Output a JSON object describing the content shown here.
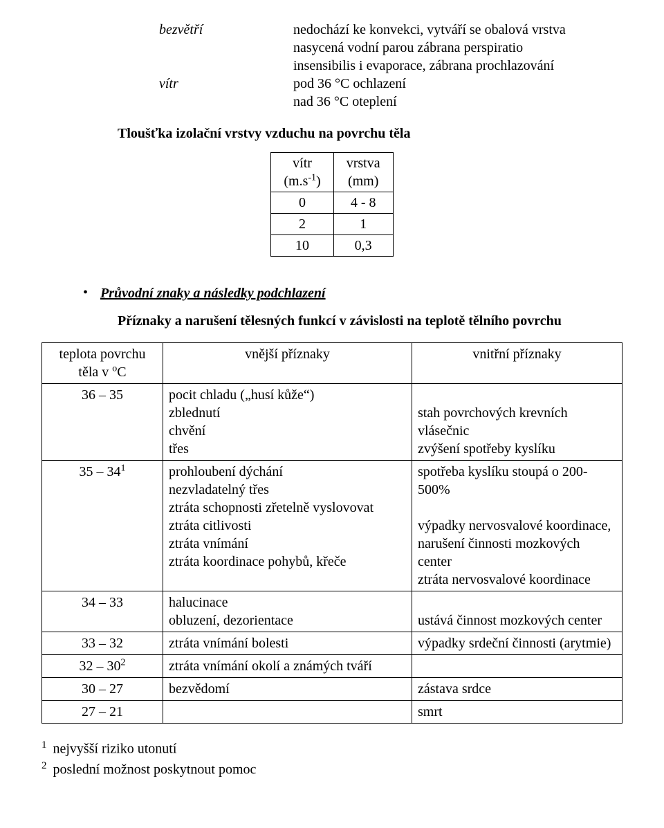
{
  "defs": {
    "row1_term": "bezvětří",
    "row1_line1": "nedochází ke konvekci, vytváří se obalová vrstva",
    "row1_line2": "nasycená vodní  parou  zábrana perspiratio",
    "row1_line3": "insensibilis i evaporace, zábrana prochlazování",
    "row2_term": "vítr",
    "row2_line1": "pod 36 °C ochlazení",
    "row2_line2": "nad 36 °C oteplení"
  },
  "thickness_heading": "Tloušťka izolační vrstvy vzduchu na povrchu těla",
  "small_table": {
    "header_left": "vítr",
    "header_left_unit": "(m.s",
    "header_left_unit_exp": "-1",
    "header_left_unit_close": ")",
    "header_right": "vrstva",
    "header_right_unit": "(mm)",
    "r1c1": "0",
    "r1c2": "4 - 8",
    "r2c1": "2",
    "r2c2": "1",
    "r3c1": "10",
    "r3c2": "0,3"
  },
  "bullet": "Průvodní znaky a následky podchlazení",
  "subcaption": "Příznaky a narušení tělesných funkcí v závislosti na  teplotě tělního povrchu",
  "main_table": {
    "h1_line1": "teplota povrchu",
    "h1_line2a": "těla v ",
    "h1_line2_sup": "o",
    "h1_line2b": "C",
    "h2": "vnější příznaky",
    "h3": "vnitřní příznaky",
    "t1": "36 – 35",
    "o1_l1": "pocit chladu („husí kůže“)",
    "o1_l2": "zblednutí",
    "o1_l3": "chvění",
    "o1_l4": "třes",
    "i1_l1": "",
    "i1_l2": "stah povrchových krevních vlásečnic",
    "i1_l3": "zvýšení spotřeby kyslíku",
    "t2_a": "35 – 34",
    "t2_sup": "1",
    "o2_l1": "prohloubení dýchání",
    "o2_l2": "nezvladatelný třes",
    "o2_l3": "ztráta schopnosti zřetelně vyslovovat",
    "o2_l4": "ztráta citlivosti",
    "o2_l5": "ztráta vnímání",
    "o2_l6": "ztráta koordinace pohybů, křeče",
    "i2_l1": "spotřeba kyslíku stoupá o 200-500%",
    "i2_l2": "",
    "i2_l3": "výpadky nervosvalové koordinace,",
    "i2_l4": "narušení činnosti mozkových center",
    "i2_l5": "ztráta nervosvalové koordinace",
    "t3": "34 – 33",
    "o3_l1": "halucinace",
    "o3_l2": "obluzení, dezorientace",
    "i3_l1": "",
    "i3_l2": "ustává činnost mozkových center",
    "t4": "33 – 32",
    "o4": "ztráta vnímání bolesti",
    "i4": "výpadky srdeční činnosti (arytmie)",
    "t5_a": "32 – 30",
    "t5_sup": "2",
    "o5": "ztráta vnímání okolí a známých tváří",
    "i5": "",
    "t6": "30 – 27",
    "o6": "bezvědomí",
    "i6": "zástava srdce",
    "t7": "27 – 21",
    "o7": "",
    "i7": "smrt"
  },
  "footnotes": {
    "n1": "1",
    "f1": " nejvyšší riziko utonutí",
    "n2": "2",
    "f2": " poslední možnost poskytnout pomoc"
  }
}
